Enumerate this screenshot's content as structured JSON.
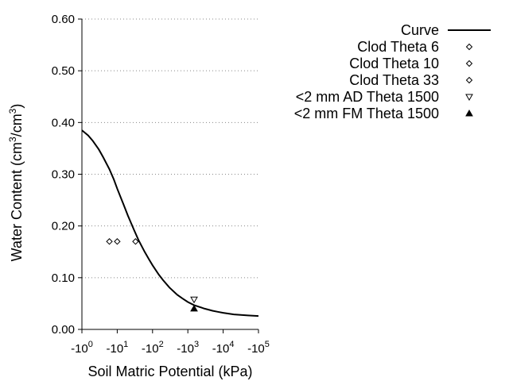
{
  "chart_data": {
    "type": "scatter",
    "title": "",
    "xlabel": "Soil Matric Potential (kPa)",
    "ylabel": "Water Content (cm3/cm3)",
    "x_scale": "log",
    "x_tick_base": "-10",
    "x_tick_exponents": [
      "0",
      "1",
      "2",
      "3",
      "4",
      "5"
    ],
    "xlim": [
      1,
      100000
    ],
    "ylim": [
      0,
      0.6
    ],
    "y_ticks": [
      "0.00",
      "0.10",
      "0.20",
      "0.30",
      "0.40",
      "0.50",
      "0.60"
    ],
    "grid": "horizontal dotted",
    "legend_placement": "right",
    "series": [
      {
        "name": "Curve",
        "kind": "line",
        "x": [
          1,
          1.5,
          2,
          3,
          4,
          6,
          8,
          10,
          15,
          20,
          30,
          40,
          60,
          80,
          100,
          150,
          200,
          300,
          500,
          700,
          1000,
          1500,
          2000,
          3000,
          5000,
          7000,
          10000,
          20000,
          50000,
          100000
        ],
        "y": [
          0.385,
          0.375,
          0.365,
          0.348,
          0.333,
          0.31,
          0.29,
          0.272,
          0.242,
          0.22,
          0.192,
          0.173,
          0.15,
          0.135,
          0.124,
          0.106,
          0.095,
          0.081,
          0.067,
          0.06,
          0.053,
          0.047,
          0.044,
          0.04,
          0.036,
          0.034,
          0.032,
          0.029,
          0.027,
          0.026
        ]
      },
      {
        "name": "Clod Theta 6",
        "kind": "marker",
        "marker": "diamond-open",
        "x": [
          6
        ],
        "y": [
          0.17
        ]
      },
      {
        "name": "Clod Theta 10",
        "kind": "marker",
        "marker": "diamond-open",
        "x": [
          10
        ],
        "y": [
          0.17
        ]
      },
      {
        "name": "Clod Theta 33",
        "kind": "marker",
        "marker": "diamond-open",
        "x": [
          33
        ],
        "y": [
          0.17
        ]
      },
      {
        "name": "<2 mm AD Theta 1500",
        "kind": "marker",
        "marker": "triangle-down-open",
        "x": [
          1500
        ],
        "y": [
          0.058
        ]
      },
      {
        "name": "<2 mm FM Theta 1500",
        "kind": "marker",
        "marker": "triangle-up-filled",
        "x": [
          1500
        ],
        "y": [
          0.04
        ]
      }
    ]
  }
}
